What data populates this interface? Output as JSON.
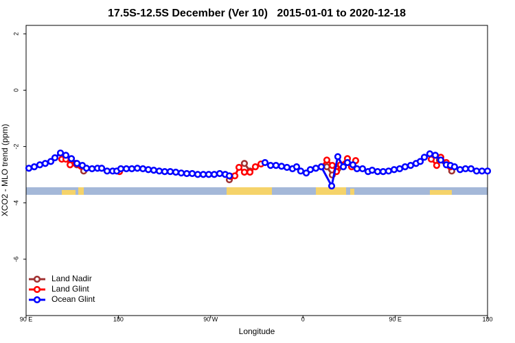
{
  "chart_data": {
    "type": "line",
    "title": "17.5S-12.5S December (Ver 10)   2015-01-01 to 2020-12-18",
    "xlabel": "Longitude",
    "ylabel": "XCO2 - MLO trend (ppm)",
    "xlim": [
      90,
      540
    ],
    "ylim": [
      -8.0,
      2.3
    ],
    "xticks": [
      {
        "value": 90,
        "label": "90 E"
      },
      {
        "value": 180,
        "label": "180"
      },
      {
        "value": 270,
        "label": "90 W"
      },
      {
        "value": 360,
        "label": "0"
      },
      {
        "value": 450,
        "label": "90 E"
      },
      {
        "value": 540,
        "label": "180"
      }
    ],
    "yticks": [
      2,
      0,
      -2,
      -4,
      -6
    ],
    "legend": "bottom-left",
    "series": [
      {
        "name": "Land Nadir",
        "color": "#a03232",
        "x": [
          128.8,
          134.2,
          139.6,
          146.2,
          null,
          288.2,
          null,
          302.9,
          308.3,
          null,
          383.3,
          388.6,
          394.0,
          null,
          493.1,
          505.1
        ],
        "values": [
          -2.36,
          -2.55,
          -2.65,
          -2.87,
          null,
          -3.18,
          null,
          -2.6,
          -2.87,
          null,
          -2.72,
          -3.01,
          -2.79,
          null,
          -2.48,
          -2.87
        ]
      },
      {
        "name": "Land Glint",
        "color": "#ff0000",
        "x": [
          124.8,
          128.8,
          132.9,
          138.2,
          143.6,
          null,
          181.1,
          null,
          289.5,
          293.6,
          297.6,
          302.9,
          308.3,
          313.6,
          319.0,
          null,
          377.9,
          383.3,
          388.6,
          392.7,
          396.7,
          403.4,
          407.4,
          411.4,
          null,
          485.1,
          490.4,
          494.4,
          499.8,
          503.8
        ],
        "values": [
          -2.45,
          -2.45,
          -2.65,
          -2.6,
          -2.7,
          null,
          -2.89,
          null,
          -3.06,
          -3.04,
          -2.74,
          -2.91,
          -2.91,
          -2.72,
          -2.62,
          null,
          -2.72,
          -2.48,
          -2.67,
          -2.89,
          -2.65,
          -2.43,
          -2.72,
          -2.5,
          null,
          -2.45,
          -2.67,
          -2.38,
          -2.57,
          -2.72
        ]
      },
      {
        "name": "Ocean Glint",
        "color": "#0000ff",
        "x": [
          92.7,
          98.0,
          103.4,
          108.7,
          114.1,
          118.1,
          123.5,
          128.8,
          134.2,
          139.6,
          144.9,
          148.9,
          154.3,
          159.6,
          163.7,
          169.0,
          174.4,
          178.4,
          182.4,
          187.8,
          193.1,
          198.5,
          203.9,
          209.2,
          214.5,
          219.9,
          225.2,
          230.6,
          236.0,
          241.3,
          246.7,
          252.0,
          257.4,
          262.8,
          268.1,
          273.5,
          278.8,
          284.2,
          288.2,
          null,
          323.0,
          328.4,
          333.7,
          339.1,
          344.4,
          349.8,
          353.8,
          357.8,
          363.2,
          367.2,
          372.6,
          377.9,
          388.0,
          394.0,
          399.4,
          403.4,
          408.7,
          412.7,
          418.1,
          423.5,
          427.5,
          432.8,
          438.2,
          443.5,
          448.9,
          454.3,
          459.6,
          465.0,
          470.3,
          474.4,
          478.4,
          483.7,
          489.1,
          494.4,
          499.8,
          503.8,
          507.8,
          513.2,
          518.5,
          523.9,
          529.3,
          534.6,
          540.0
        ],
        "values": [
          -2.77,
          -2.72,
          -2.65,
          -2.6,
          -2.53,
          -2.4,
          -2.23,
          -2.31,
          -2.43,
          -2.6,
          -2.67,
          -2.77,
          -2.79,
          -2.77,
          -2.77,
          -2.87,
          -2.87,
          -2.87,
          -2.79,
          -2.79,
          -2.79,
          -2.77,
          -2.79,
          -2.82,
          -2.84,
          -2.87,
          -2.89,
          -2.89,
          -2.91,
          -2.94,
          -2.96,
          -2.96,
          -2.99,
          -2.99,
          -2.99,
          -2.99,
          -2.96,
          -2.99,
          -3.04,
          null,
          -2.57,
          -2.67,
          -2.67,
          -2.7,
          -2.74,
          -2.79,
          -2.72,
          -2.87,
          -2.94,
          -2.82,
          -2.77,
          -2.72,
          -3.4,
          -2.36,
          -2.72,
          -2.57,
          -2.65,
          -2.79,
          -2.79,
          -2.89,
          -2.84,
          -2.89,
          -2.89,
          -2.87,
          -2.82,
          -2.79,
          -2.72,
          -2.67,
          -2.6,
          -2.53,
          -2.38,
          -2.26,
          -2.31,
          -2.48,
          -2.65,
          -2.67,
          -2.72,
          -2.82,
          -2.79,
          -2.79,
          -2.87,
          -2.87,
          -2.87
        ]
      }
    ]
  }
}
